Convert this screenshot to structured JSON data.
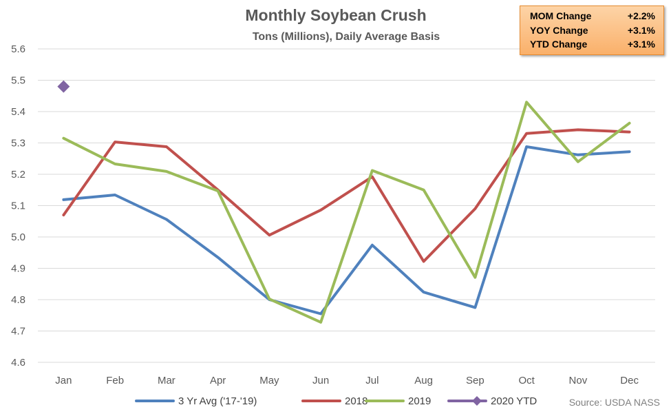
{
  "chart_data": {
    "type": "line",
    "title": "Monthly Soybean Crush",
    "subtitle": "Tons (Millions), Daily Average Basis",
    "categories": [
      "Jan",
      "Feb",
      "Mar",
      "Apr",
      "May",
      "Jun",
      "Jul",
      "Aug",
      "Sep",
      "Oct",
      "Nov",
      "Dec"
    ],
    "ylim": [
      4.6,
      5.6
    ],
    "yticks": [
      "4.6",
      "4.7",
      "4.8",
      "4.9",
      "5.0",
      "5.1",
      "5.2",
      "5.3",
      "5.4",
      "5.5",
      "5.6"
    ],
    "grid": true,
    "legend_position": "bottom",
    "series": [
      {
        "name": "3 Yr Avg ('17-'19)",
        "color": "#4f81bd",
        "values": [
          5.119,
          5.134,
          5.056,
          4.935,
          4.8,
          4.755,
          4.974,
          4.824,
          4.775,
          5.288,
          5.262,
          5.272
        ]
      },
      {
        "name": "2018",
        "color": "#c0504d",
        "values": [
          5.07,
          5.303,
          5.288,
          5.15,
          5.006,
          5.086,
          5.192,
          4.922,
          5.09,
          5.33,
          5.342,
          5.335
        ]
      },
      {
        "name": "2019",
        "color": "#9bbb59",
        "values": [
          5.315,
          5.233,
          5.209,
          5.147,
          4.802,
          4.728,
          5.212,
          5.15,
          4.871,
          5.43,
          5.24,
          5.363
        ]
      },
      {
        "name": "2020 YTD",
        "color": "#8064a2",
        "marker": "diamond",
        "values": [
          5.48,
          null,
          null,
          null,
          null,
          null,
          null,
          null,
          null,
          null,
          null,
          null
        ]
      }
    ],
    "annotation_source": "Source: USDA NASS"
  },
  "stats_box": [
    {
      "label": "MOM Change",
      "value": "+2.2%"
    },
    {
      "label": "YOY Change",
      "value": "+3.1%"
    },
    {
      "label": "YTD Change",
      "value": "+3.1%"
    }
  ]
}
